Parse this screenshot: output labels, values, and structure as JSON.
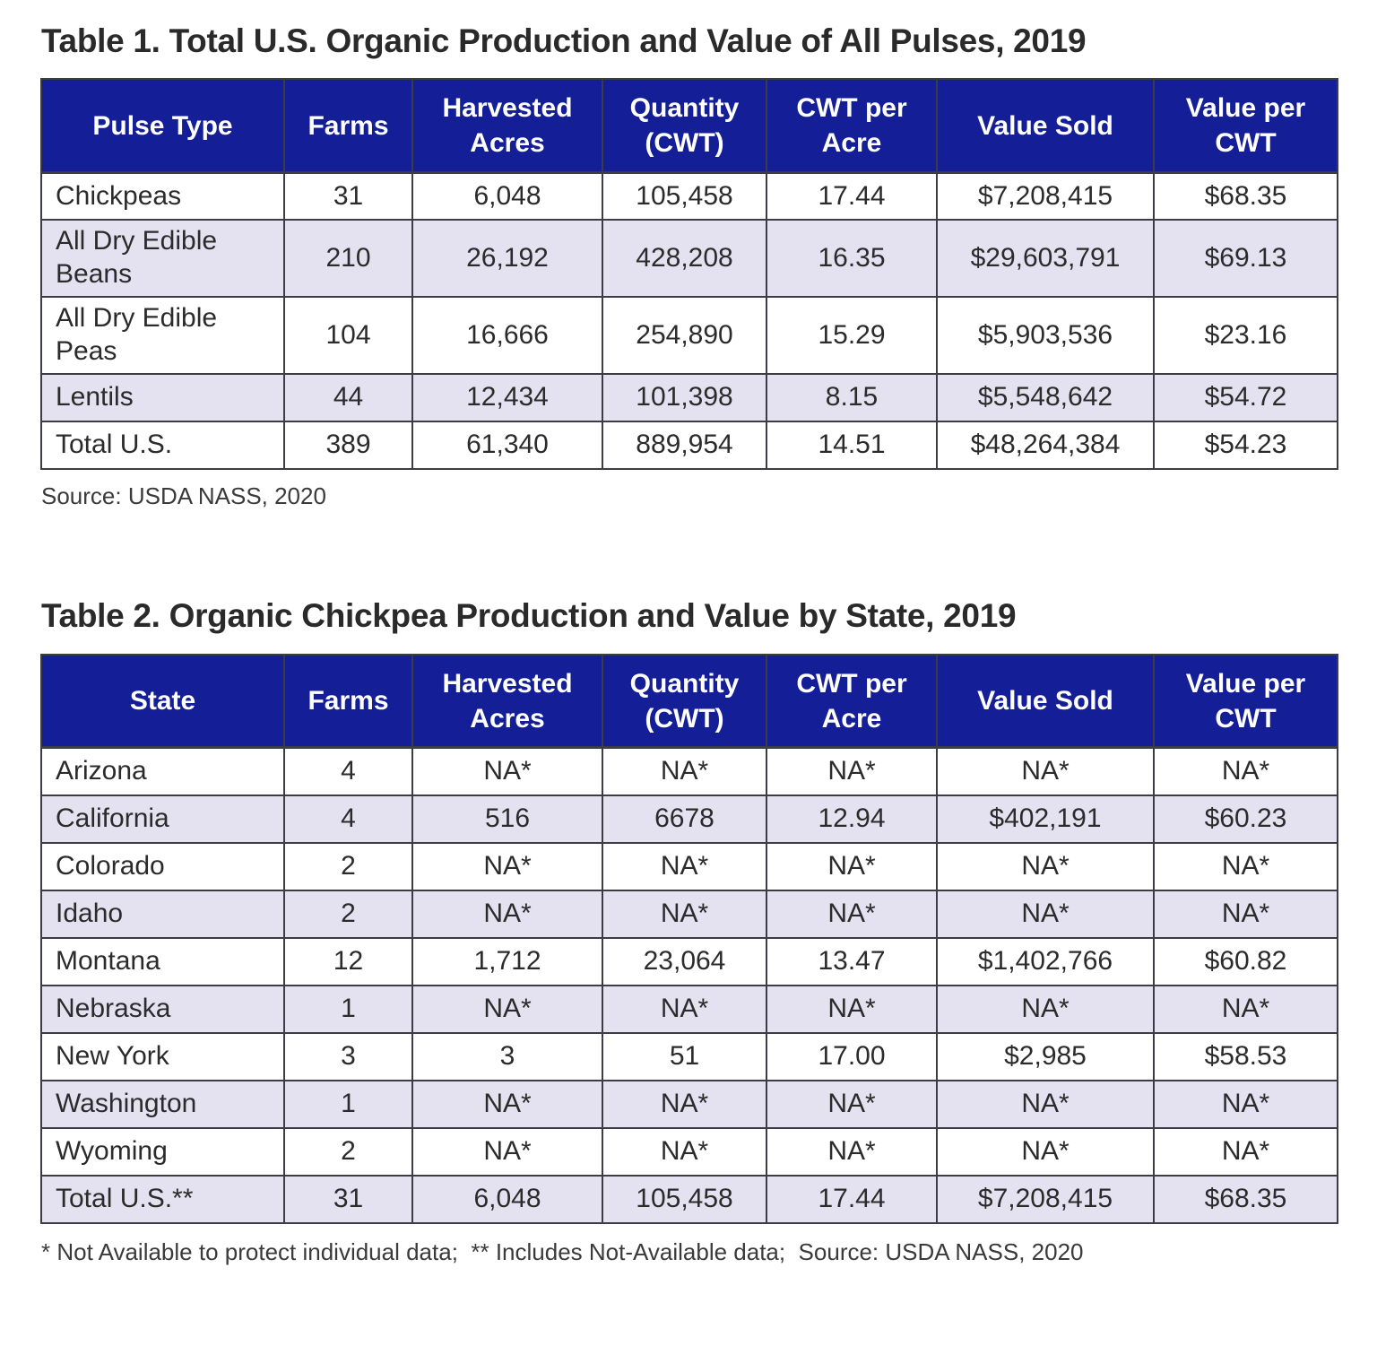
{
  "colors": {
    "header_bg": "#141E96",
    "header_text": "#ffffff",
    "row_bg": "#ffffff",
    "row_alt_bg": "#E4E2F0",
    "border": "#3c3c44",
    "text": "#2b2b2b"
  },
  "table1": {
    "title": "Table 1. Total U.S. Organic Production and Value of All Pulses, 2019",
    "source": "Source: USDA NASS, 2020",
    "columns": [
      "Pulse Type",
      "Farms",
      "Harvested\nAcres",
      "Quantity\n(CWT)",
      "CWT per\nAcre",
      "Value Sold",
      "Value per\nCWT"
    ],
    "rows": [
      [
        "Chickpeas",
        "31",
        "6,048",
        "105,458",
        "17.44",
        "$7,208,415",
        "$68.35"
      ],
      [
        "All Dry Edible Beans",
        "210",
        "26,192",
        "428,208",
        "16.35",
        "$29,603,791",
        "$69.13"
      ],
      [
        "All Dry Edible Peas",
        "104",
        "16,666",
        "254,890",
        "15.29",
        "$5,903,536",
        "$23.16"
      ],
      [
        "Lentils",
        "44",
        "12,434",
        "101,398",
        "8.15",
        "$5,548,642",
        "$54.72"
      ],
      [
        "Total U.S.",
        "389",
        "61,340",
        "889,954",
        "14.51",
        "$48,264,384",
        "$54.23"
      ]
    ]
  },
  "table2": {
    "title": "Table 2. Organic Chickpea Production and Value by State, 2019",
    "footnote": "* Not Available to protect individual data;  ** Includes Not-Available data;  Source: USDA NASS, 2020",
    "columns": [
      "State",
      "Farms",
      "Harvested\nAcres",
      "Quantity\n(CWT)",
      "CWT per\nAcre",
      "Value Sold",
      "Value per\nCWT"
    ],
    "rows": [
      [
        "Arizona",
        "4",
        "NA*",
        "NA*",
        "NA*",
        "NA*",
        "NA*"
      ],
      [
        "California",
        "4",
        "516",
        "6678",
        "12.94",
        "$402,191",
        "$60.23"
      ],
      [
        "Colorado",
        "2",
        "NA*",
        "NA*",
        "NA*",
        "NA*",
        "NA*"
      ],
      [
        "Idaho",
        "2",
        "NA*",
        "NA*",
        "NA*",
        "NA*",
        "NA*"
      ],
      [
        "Montana",
        "12",
        "1,712",
        "23,064",
        "13.47",
        "$1,402,766",
        "$60.82"
      ],
      [
        "Nebraska",
        "1",
        "NA*",
        "NA*",
        "NA*",
        "NA*",
        "NA*"
      ],
      [
        "New York",
        "3",
        "3",
        "51",
        "17.00",
        "$2,985",
        "$58.53"
      ],
      [
        "Washington",
        "1",
        "NA*",
        "NA*",
        "NA*",
        "NA*",
        "NA*"
      ],
      [
        "Wyoming",
        "2",
        "NA*",
        "NA*",
        "NA*",
        "NA*",
        "NA*"
      ],
      [
        "Total U.S.**",
        "31",
        "6,048",
        "105,458",
        "17.44",
        "$7,208,415",
        "$68.35"
      ]
    ]
  }
}
